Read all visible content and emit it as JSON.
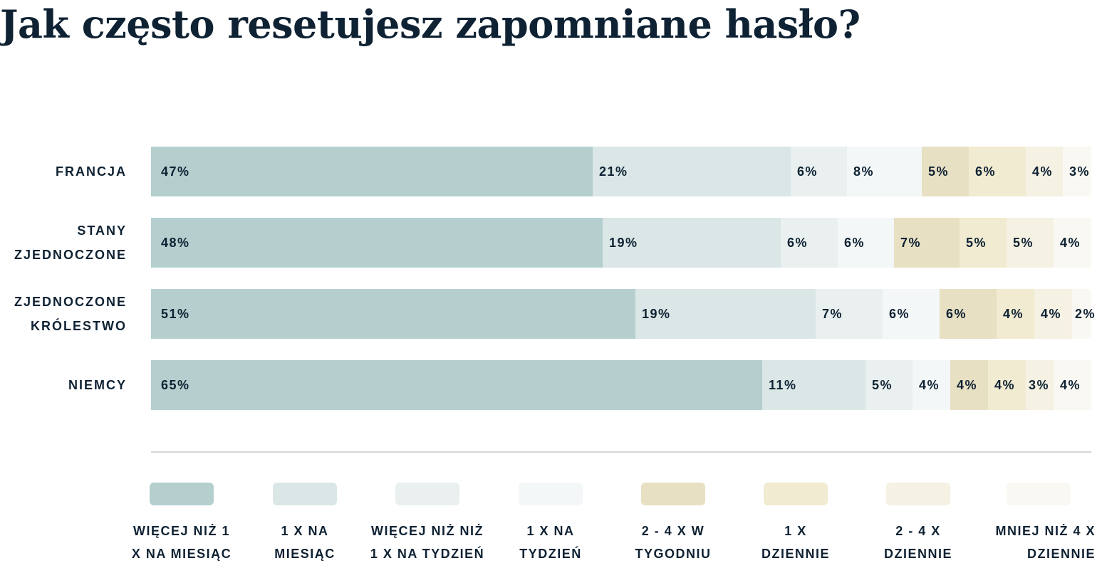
{
  "chart_data": {
    "type": "bar",
    "orientation": "horizontal",
    "stacked": true,
    "title": "Jak często resetujesz zapomniane hasło?",
    "categories": [
      [
        "FRANCJA"
      ],
      [
        "STANY",
        "ZJEDNOCZONE"
      ],
      [
        "ZJEDNOCZONE",
        "KRÓLESTWO"
      ],
      [
        "NIEMCY"
      ]
    ],
    "series": [
      {
        "name": [
          "WIĘCEJ NIŻ 1",
          "X NA MIESIĄC"
        ],
        "color": "#b5cfcf",
        "values": [
          47,
          48,
          51,
          65
        ]
      },
      {
        "name": [
          "1 X NA",
          "MIESIĄC"
        ],
        "color": "#dae7e6",
        "values": [
          21,
          19,
          19,
          11
        ]
      },
      {
        "name": [
          "WIĘCEJ NIŻ NIŻ",
          "1 X NA TYDZIEŃ"
        ],
        "color": "#e9f0ef",
        "values": [
          6,
          6,
          7,
          5
        ]
      },
      {
        "name": [
          "1 X NA",
          "TYDZIEŃ"
        ],
        "color": "#f4f7f7",
        "values": [
          8,
          6,
          6,
          4
        ]
      },
      {
        "name": [
          "2 - 4 X W",
          "TYGODNIU"
        ],
        "color": "#e8e0c3",
        "values": [
          5,
          7,
          6,
          4
        ]
      },
      {
        "name": [
          "1 X",
          "DZIENNIE"
        ],
        "color": "#f1ebd1",
        "values": [
          6,
          5,
          4,
          4
        ]
      },
      {
        "name": [
          "2 - 4 X",
          "DZIENNIE"
        ],
        "color": "#f5f1e3",
        "values": [
          4,
          5,
          4,
          3
        ]
      },
      {
        "name": [
          "MNIEJ NIŻ 4 X",
          "DZIENNIE"
        ],
        "color": "#f9f8f2",
        "values": [
          3,
          4,
          2,
          4
        ]
      }
    ],
    "value_suffix": "%",
    "legend": "bottom",
    "grid": false
  }
}
